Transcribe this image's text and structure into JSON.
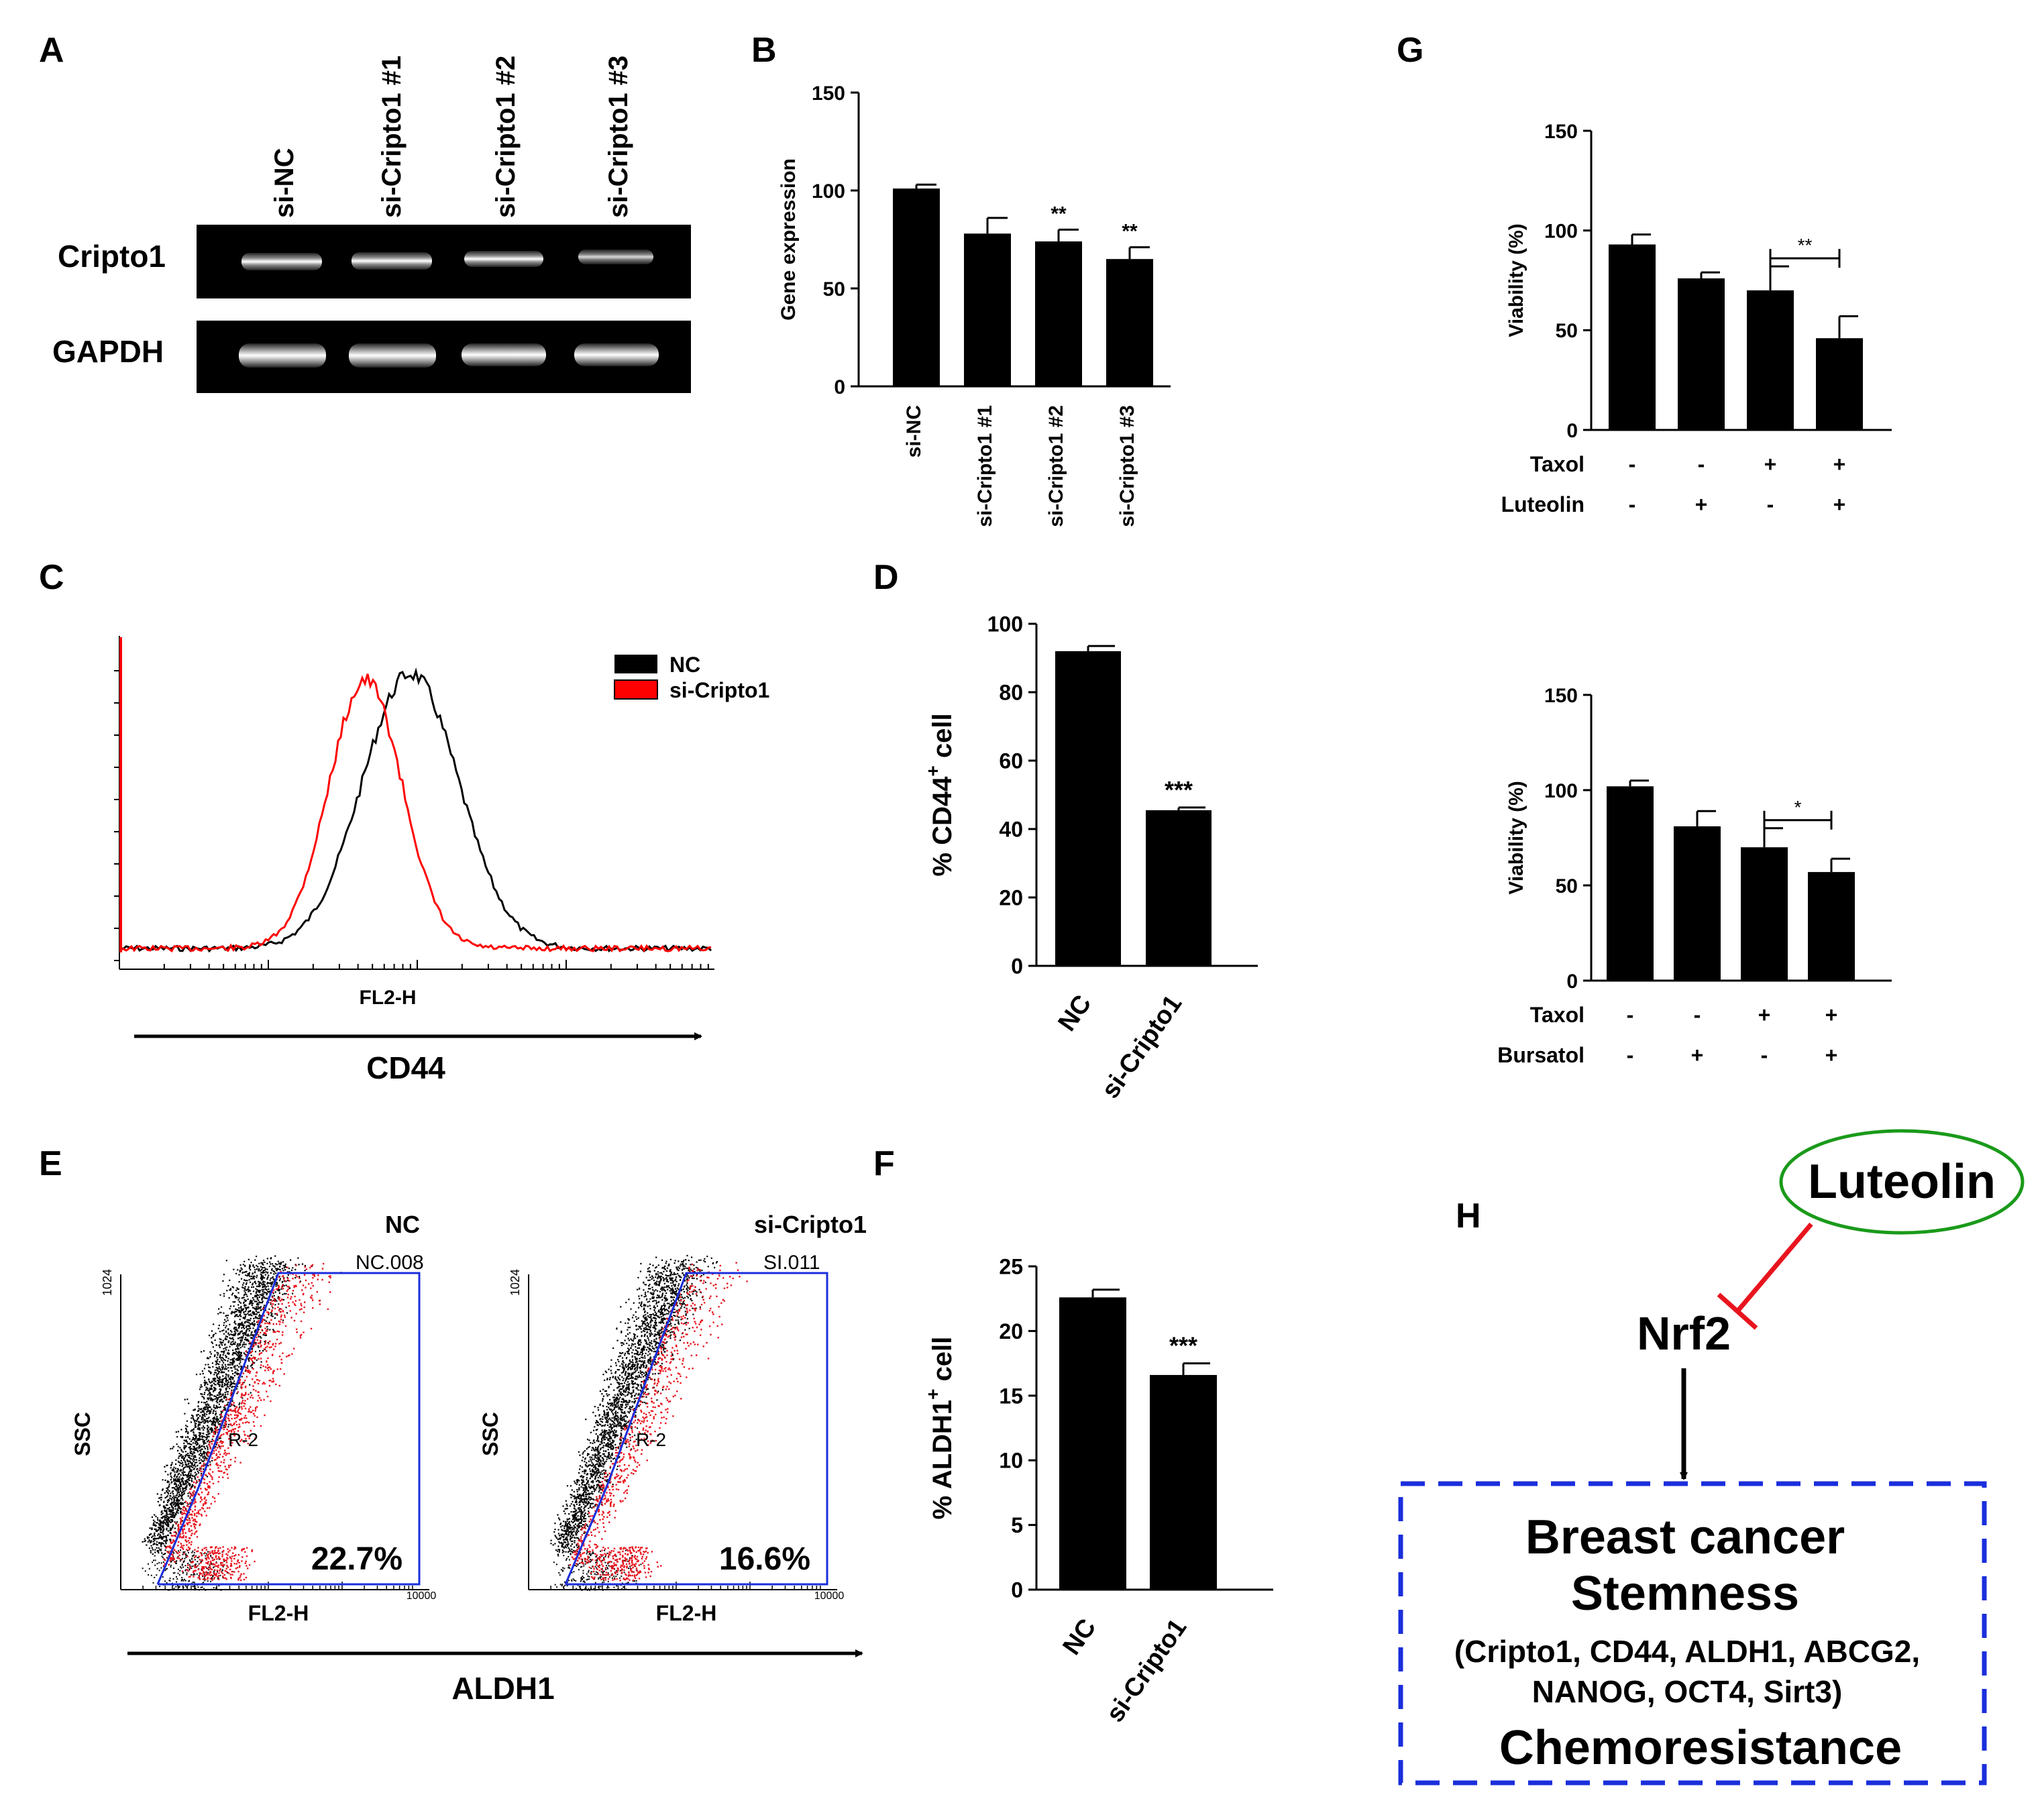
{
  "panels": {
    "A": "A",
    "B": "B",
    "C": "C",
    "D": "D",
    "E": "E",
    "F": "F",
    "G": "G",
    "H": "H"
  },
  "panelA": {
    "lanes": [
      "si-NC",
      "si-Cripto1 #1",
      "si-Cripto1 #2",
      "si-Cripto1 #3"
    ],
    "rows": [
      "Cripto1",
      "GAPDH"
    ]
  },
  "panelC": {
    "legend": [
      "NC",
      "si-Cripto1"
    ],
    "xlabel": "FL2-H",
    "marker": "CD44",
    "colors": {
      "nc": "#000000",
      "si": "#ff0000"
    }
  },
  "panelE": {
    "plots": [
      {
        "title": "NC",
        "gate": "NC.008",
        "percent": "22.7%",
        "region": "R-2",
        "xlabel": "FL2-H",
        "ylabel": "SSC",
        "ymax": "1024",
        "xmax": "10000"
      },
      {
        "title": "si-Cripto1",
        "gate": "SI.011",
        "percent": "16.6%",
        "region": "R-2",
        "xlabel": "FL2-H",
        "ylabel": "SSC",
        "ymax": "1024",
        "xmax": "10000"
      }
    ],
    "marker": "ALDH1"
  },
  "panelH": {
    "inhibitor": "Luteolin",
    "target": "Nrf2",
    "box_title1": "Breast cancer",
    "box_title2": "Stemness",
    "genes_line1": "(Cripto1, CD44, ALDH1, ABCG2,",
    "genes_line2": "NANOG, OCT4, Sirt3)",
    "box_title3": "Chemoresistance",
    "colors": {
      "ellipse": "#1a9a1a",
      "inhibit": "#e8141e",
      "box": "#1a2edc"
    }
  },
  "chart_data": [
    {
      "id": "B",
      "type": "bar",
      "categories": [
        "si-NC",
        "si-Cripto1 #1",
        "si-Cripto1 #2",
        "si-Cripto1 #3"
      ],
      "values": [
        101,
        78,
        74,
        65
      ],
      "errors": [
        2,
        8,
        6,
        6
      ],
      "significance": [
        "",
        "",
        "**",
        "**"
      ],
      "ylabel": "Gene expression",
      "ylim": [
        0,
        150
      ],
      "yticks": [
        "0",
        "50",
        "100",
        "150"
      ]
    },
    {
      "id": "D",
      "type": "bar",
      "categories": [
        "NC",
        "si-Cripto1"
      ],
      "values": [
        92,
        45.5
      ],
      "errors": [
        1.5,
        0.8
      ],
      "significance": [
        "",
        "***"
      ],
      "ylabel_main": "% CD44",
      "ylabel_sup": "+",
      "ylabel_tail": " cell",
      "ylim": [
        0,
        100
      ],
      "yticks": [
        "0",
        "20",
        "40",
        "60",
        "80",
        "100"
      ]
    },
    {
      "id": "F",
      "type": "bar",
      "categories": [
        "NC",
        "si-Cripto1"
      ],
      "values": [
        22.6,
        16.6
      ],
      "errors": [
        0.6,
        0.9
      ],
      "significance": [
        "",
        "***"
      ],
      "ylabel_main": "% ALDH1",
      "ylabel_sup": "+",
      "ylabel_tail": " cell",
      "ylim": [
        0,
        25
      ],
      "yticks": [
        "0",
        "5",
        "10",
        "15",
        "20",
        "25"
      ]
    },
    {
      "id": "G1",
      "type": "bar",
      "values": [
        93,
        76,
        70,
        46
      ],
      "errors": [
        5,
        3,
        12,
        11
      ],
      "bracket": {
        "from": 2,
        "to": 3,
        "label": "**"
      },
      "ylabel": "Viability (%)",
      "ylim": [
        0,
        150
      ],
      "yticks": [
        "0",
        "50",
        "100",
        "150"
      ],
      "treatments": [
        {
          "name": "Taxol",
          "signs": [
            "-",
            "-",
            "+",
            "+"
          ]
        },
        {
          "name": "Luteolin",
          "signs": [
            "-",
            "+",
            "-",
            "+"
          ]
        }
      ]
    },
    {
      "id": "G2",
      "type": "bar",
      "values": [
        102,
        81,
        70,
        57
      ],
      "errors": [
        3,
        8,
        10,
        7
      ],
      "bracket": {
        "from": 2,
        "to": 3,
        "label": "*"
      },
      "ylabel": "Viability (%)",
      "ylim": [
        0,
        150
      ],
      "yticks": [
        "0",
        "50",
        "100",
        "150"
      ],
      "treatments": [
        {
          "name": "Taxol",
          "signs": [
            "-",
            "-",
            "+",
            "+"
          ]
        },
        {
          "name": "Bursatol",
          "signs": [
            "-",
            "+",
            "-",
            "+"
          ]
        }
      ]
    }
  ]
}
